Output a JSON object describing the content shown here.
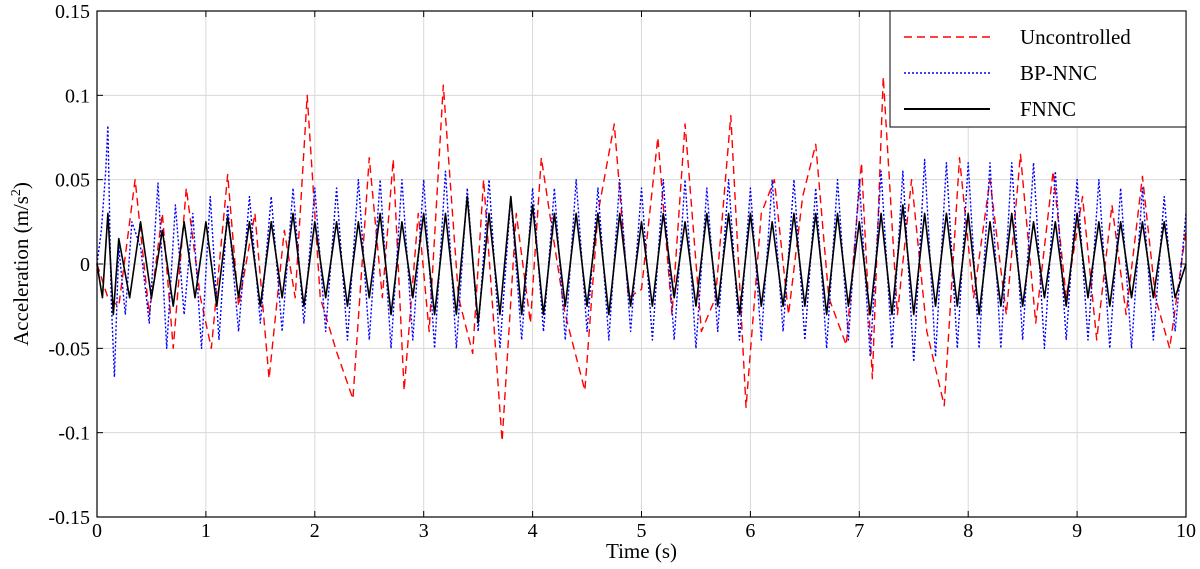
{
  "chart_data": {
    "type": "line",
    "title": "",
    "xlabel": "Time (s)",
    "ylabel_main": "Acceleration (m/s",
    "ylabel_sup": "2",
    "ylabel_end": ")",
    "xlim": [
      0,
      10
    ],
    "ylim": [
      -0.15,
      0.15
    ],
    "x_ticks": [
      0,
      1,
      2,
      3,
      4,
      5,
      6,
      7,
      8,
      9,
      10
    ],
    "x_tick_labels": [
      "0",
      "1",
      "2",
      "3",
      "4",
      "5",
      "6",
      "7",
      "8",
      "9",
      "10"
    ],
    "y_ticks": [
      0.15,
      0.1,
      0.05,
      0,
      -0.05,
      -0.1,
      -0.15
    ],
    "y_tick_labels": [
      "0.15",
      "0.1",
      "0.05",
      "0",
      "-0.05",
      "-0.1",
      "-0.15"
    ],
    "grid": true,
    "legend_position": "top-right",
    "series": [
      {
        "name": "Uncontrolled",
        "color": "#ff0000",
        "style": "dashed",
        "x": [
          0.0,
          0.1,
          0.2,
          0.35,
          0.48,
          0.6,
          0.7,
          0.82,
          0.95,
          1.05,
          1.2,
          1.3,
          1.45,
          1.58,
          1.72,
          1.82,
          1.93,
          2.05,
          2.2,
          2.35,
          2.5,
          2.62,
          2.72,
          2.82,
          2.95,
          3.05,
          3.18,
          3.32,
          3.45,
          3.55,
          3.72,
          3.85,
          3.98,
          4.08,
          4.18,
          4.3,
          4.48,
          4.6,
          4.75,
          4.88,
          5.0,
          5.15,
          5.28,
          5.4,
          5.55,
          5.68,
          5.82,
          5.96,
          6.1,
          6.22,
          6.35,
          6.48,
          6.6,
          6.72,
          6.88,
          7.02,
          7.12,
          7.22,
          7.35,
          7.48,
          7.62,
          7.78,
          7.92,
          8.05,
          8.2,
          8.35,
          8.48,
          8.62,
          8.78,
          8.9,
          9.05,
          9.18,
          9.32,
          9.45,
          9.6,
          9.72,
          9.85,
          10.0
        ],
        "y": [
          0.0,
          -0.02,
          -0.025,
          0.05,
          -0.03,
          0.03,
          -0.05,
          0.045,
          -0.02,
          -0.05,
          0.053,
          -0.025,
          0.03,
          -0.068,
          0.02,
          -0.02,
          0.1,
          -0.02,
          -0.052,
          -0.08,
          0.063,
          -0.02,
          0.062,
          -0.075,
          0.03,
          -0.04,
          0.106,
          -0.02,
          -0.053,
          0.05,
          -0.105,
          0.03,
          -0.035,
          0.063,
          0.02,
          -0.03,
          -0.075,
          0.03,
          0.083,
          -0.02,
          -0.015,
          0.075,
          -0.03,
          0.083,
          -0.04,
          -0.02,
          0.088,
          -0.085,
          0.03,
          0.05,
          -0.03,
          0.04,
          0.071,
          -0.02,
          -0.048,
          0.06,
          -0.068,
          0.111,
          -0.03,
          0.05,
          -0.04,
          -0.084,
          0.063,
          -0.02,
          0.05,
          -0.03,
          0.065,
          -0.035,
          0.055,
          -0.02,
          0.04,
          -0.045,
          0.035,
          -0.03,
          0.052,
          -0.02,
          -0.05,
          0.02
        ]
      },
      {
        "name": "BP-NNC",
        "color": "#0000ff",
        "style": "dotted",
        "x": [
          0.0,
          0.04,
          0.08,
          0.1,
          0.13,
          0.16,
          0.2,
          0.26,
          0.32,
          0.4,
          0.48,
          0.56,
          0.64,
          0.72,
          0.8,
          0.88,
          0.96,
          1.04,
          1.12,
          1.2,
          1.3,
          1.4,
          1.5,
          1.6,
          1.7,
          1.8,
          1.9,
          2.0,
          2.1,
          2.2,
          2.3,
          2.4,
          2.5,
          2.6,
          2.7,
          2.8,
          2.9,
          3.0,
          3.1,
          3.2,
          3.3,
          3.4,
          3.5,
          3.6,
          3.7,
          3.8,
          3.9,
          4.0,
          4.1,
          4.2,
          4.3,
          4.4,
          4.5,
          4.6,
          4.7,
          4.8,
          4.9,
          5.0,
          5.1,
          5.2,
          5.3,
          5.4,
          5.5,
          5.6,
          5.7,
          5.8,
          5.9,
          6.0,
          6.1,
          6.2,
          6.3,
          6.4,
          6.5,
          6.6,
          6.7,
          6.8,
          6.9,
          7.0,
          7.1,
          7.2,
          7.3,
          7.4,
          7.5,
          7.6,
          7.7,
          7.8,
          7.9,
          8.0,
          8.1,
          8.2,
          8.3,
          8.4,
          8.5,
          8.6,
          8.7,
          8.8,
          8.9,
          9.0,
          9.1,
          9.2,
          9.3,
          9.4,
          9.5,
          9.6,
          9.7,
          9.8,
          9.9,
          10.0
        ],
        "y": [
          0.0,
          0.02,
          0.055,
          0.082,
          -0.02,
          -0.067,
          0.01,
          -0.03,
          0.025,
          0.01,
          -0.035,
          0.048,
          -0.05,
          0.035,
          -0.03,
          0.03,
          -0.05,
          0.04,
          -0.045,
          0.035,
          -0.04,
          0.04,
          -0.035,
          0.04,
          -0.04,
          0.045,
          -0.035,
          0.045,
          -0.04,
          0.045,
          -0.045,
          0.05,
          -0.045,
          0.05,
          -0.05,
          0.05,
          -0.045,
          0.05,
          -0.05,
          0.055,
          -0.05,
          0.045,
          -0.04,
          0.05,
          -0.05,
          0.04,
          -0.045,
          0.045,
          -0.04,
          0.045,
          -0.045,
          0.05,
          -0.04,
          0.045,
          -0.045,
          0.05,
          -0.04,
          0.045,
          -0.045,
          0.05,
          -0.045,
          0.05,
          -0.05,
          0.045,
          -0.04,
          0.05,
          -0.045,
          0.045,
          -0.045,
          0.05,
          -0.04,
          0.05,
          -0.045,
          0.045,
          -0.05,
          0.05,
          -0.045,
          0.05,
          -0.055,
          0.055,
          -0.05,
          0.055,
          -0.058,
          0.062,
          -0.055,
          0.06,
          -0.05,
          0.06,
          -0.05,
          0.06,
          -0.05,
          0.06,
          -0.045,
          0.06,
          -0.05,
          0.055,
          -0.045,
          0.05,
          -0.045,
          0.05,
          -0.05,
          0.045,
          -0.05,
          0.045,
          -0.045,
          0.04,
          -0.04,
          0.03
        ]
      },
      {
        "name": "FNNC",
        "color": "#000000",
        "style": "solid",
        "x": [
          0.0,
          0.05,
          0.1,
          0.15,
          0.2,
          0.3,
          0.4,
          0.5,
          0.6,
          0.7,
          0.8,
          0.9,
          1.0,
          1.1,
          1.2,
          1.3,
          1.4,
          1.5,
          1.6,
          1.7,
          1.8,
          1.9,
          2.0,
          2.1,
          2.2,
          2.3,
          2.4,
          2.5,
          2.6,
          2.7,
          2.8,
          2.9,
          3.0,
          3.1,
          3.2,
          3.3,
          3.4,
          3.5,
          3.6,
          3.7,
          3.8,
          3.9,
          4.0,
          4.1,
          4.2,
          4.3,
          4.4,
          4.5,
          4.6,
          4.7,
          4.8,
          4.9,
          5.0,
          5.1,
          5.2,
          5.3,
          5.4,
          5.5,
          5.6,
          5.7,
          5.8,
          5.9,
          6.0,
          6.1,
          6.2,
          6.3,
          6.4,
          6.5,
          6.6,
          6.7,
          6.8,
          6.9,
          7.0,
          7.1,
          7.2,
          7.3,
          7.4,
          7.5,
          7.6,
          7.7,
          7.8,
          7.9,
          8.0,
          8.1,
          8.2,
          8.3,
          8.4,
          8.5,
          8.6,
          8.7,
          8.8,
          8.9,
          9.0,
          9.1,
          9.2,
          9.3,
          9.4,
          9.5,
          9.6,
          9.7,
          9.8,
          9.9,
          10.0
        ],
        "y": [
          0.0,
          -0.02,
          0.03,
          -0.03,
          0.015,
          -0.02,
          0.025,
          -0.02,
          0.02,
          -0.025,
          0.025,
          -0.02,
          0.025,
          -0.025,
          0.028,
          -0.02,
          0.025,
          -0.025,
          0.025,
          -0.02,
          0.03,
          -0.025,
          0.025,
          -0.02,
          0.025,
          -0.025,
          0.025,
          -0.02,
          0.03,
          -0.03,
          0.025,
          -0.02,
          0.03,
          -0.03,
          0.03,
          -0.03,
          0.04,
          -0.035,
          0.03,
          -0.03,
          0.04,
          -0.03,
          0.035,
          -0.03,
          0.03,
          -0.025,
          0.03,
          -0.025,
          0.03,
          -0.03,
          0.03,
          -0.025,
          0.025,
          -0.025,
          0.03,
          -0.02,
          0.025,
          -0.025,
          0.03,
          -0.025,
          0.03,
          -0.03,
          0.03,
          -0.025,
          0.025,
          -0.025,
          0.03,
          -0.025,
          0.03,
          -0.03,
          0.03,
          -0.025,
          0.025,
          -0.03,
          0.03,
          -0.03,
          0.035,
          -0.03,
          0.03,
          -0.025,
          0.03,
          -0.025,
          0.03,
          -0.03,
          0.025,
          -0.025,
          0.03,
          -0.025,
          0.025,
          -0.02,
          0.025,
          -0.025,
          0.03,
          -0.02,
          0.025,
          -0.025,
          0.025,
          -0.02,
          0.025,
          -0.02,
          0.025,
          -0.02,
          0.0
        ]
      }
    ]
  }
}
